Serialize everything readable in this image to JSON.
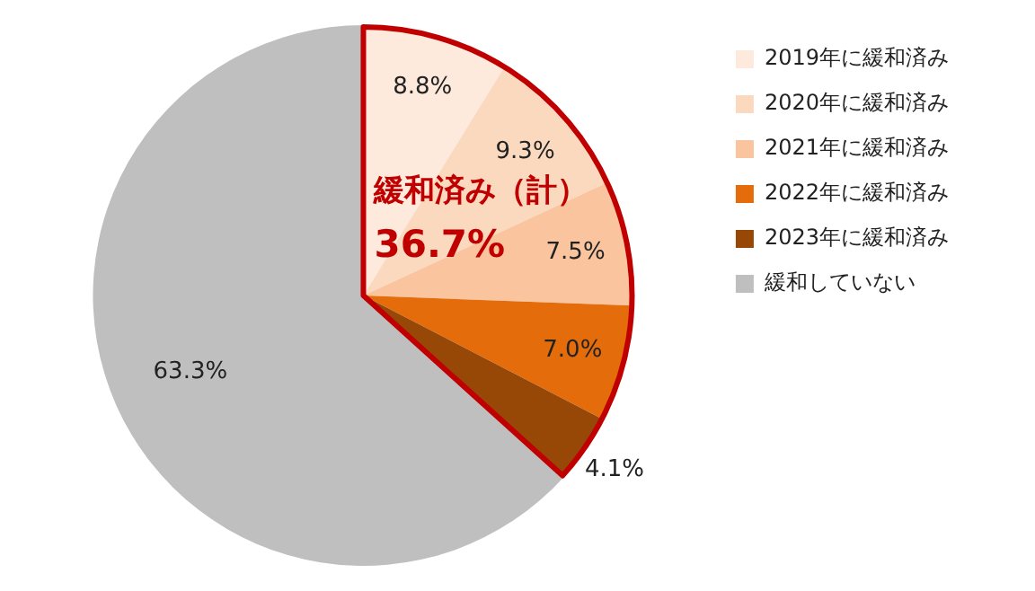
{
  "chart_data": {
    "type": "pie",
    "categories": [
      "2019年に緩和済み",
      "2020年に緩和済み",
      "2021年に緩和済み",
      "2022年に緩和済み",
      "2023年に緩和済み",
      "緩和していない"
    ],
    "values": [
      8.8,
      9.3,
      7.5,
      7.0,
      4.1,
      63.3
    ],
    "colors": [
      "#fdeadd",
      "#fbd9bf",
      "#f9c49e",
      "#e46c0a",
      "#974706",
      "#bfbfbf"
    ],
    "value_labels": [
      "8.8%",
      "9.3%",
      "7.5%",
      "7.0%",
      "4.1%",
      "63.3%"
    ],
    "legend": "right",
    "annotations": [
      "緩和済み（計）",
      "36.7%"
    ]
  }
}
